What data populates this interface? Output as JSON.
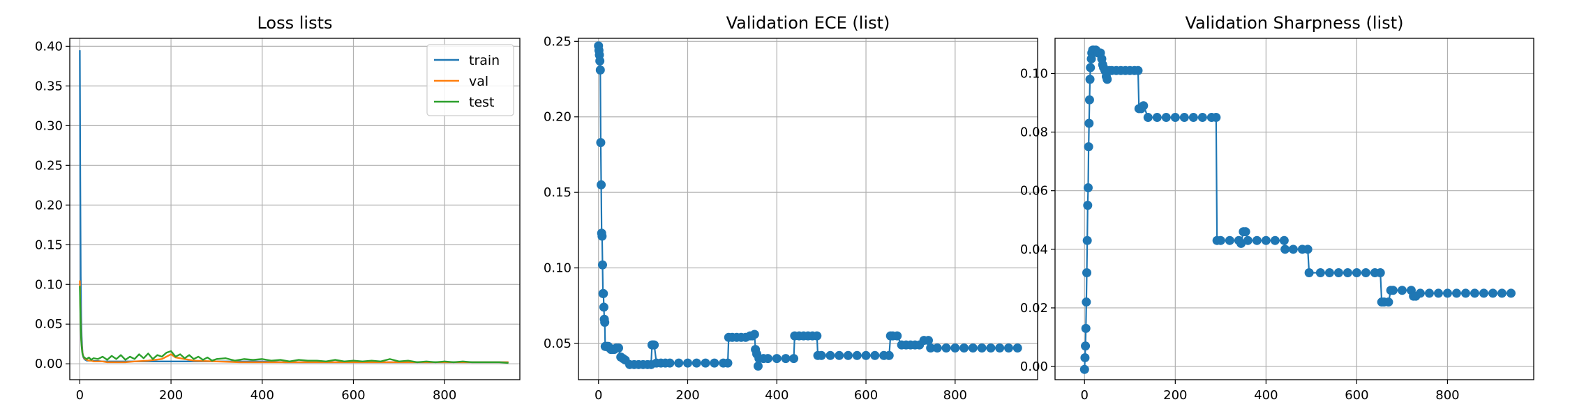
{
  "chart_data": [
    {
      "type": "line",
      "title": "Loss lists",
      "xlabel": "",
      "ylabel": "",
      "xlim": [
        -22,
        965
      ],
      "ylim": [
        -0.02,
        0.41
      ],
      "xticks": [
        0,
        200,
        400,
        600,
        800
      ],
      "yticks": [
        0.0,
        0.05,
        0.1,
        0.15,
        0.2,
        0.25,
        0.3,
        0.35,
        0.4
      ],
      "grid": true,
      "legend": "top-right",
      "series": [
        {
          "name": "train",
          "color": "#1f77b4",
          "x": [
            0,
            1,
            2,
            3,
            4,
            5,
            6,
            8,
            10,
            12,
            15,
            20,
            25,
            30,
            40,
            50,
            60,
            80,
            100,
            120,
            150,
            200,
            250,
            300,
            350,
            400,
            450,
            500,
            550,
            600,
            650,
            700,
            750,
            800,
            850,
            900,
            940
          ],
          "y": [
            0.395,
            0.23,
            0.11,
            0.06,
            0.035,
            0.022,
            0.014,
            0.008,
            0.006,
            0.005,
            0.004,
            0.004,
            0.004,
            0.0035,
            0.0035,
            0.003,
            0.003,
            0.003,
            0.003,
            0.003,
            0.003,
            0.003,
            0.003,
            0.003,
            0.003,
            0.003,
            0.002,
            0.002,
            0.002,
            0.002,
            0.002,
            0.002,
            0.002,
            0.002,
            0.002,
            0.002,
            0.002
          ]
        },
        {
          "name": "val",
          "color": "#ff7f0e",
          "x": [
            0,
            1,
            2,
            3,
            4,
            5,
            6,
            8,
            10,
            12,
            15,
            20,
            25,
            30,
            40,
            50,
            60,
            80,
            100,
            120,
            150,
            180,
            200,
            210,
            250,
            300,
            350,
            400,
            450,
            500,
            550,
            600,
            650,
            700,
            750,
            800,
            850,
            900,
            940
          ],
          "y": [
            0.105,
            0.075,
            0.05,
            0.035,
            0.025,
            0.018,
            0.013,
            0.009,
            0.007,
            0.006,
            0.005,
            0.004,
            0.004,
            0.003,
            0.003,
            0.003,
            0.002,
            0.002,
            0.002,
            0.003,
            0.004,
            0.006,
            0.012,
            0.008,
            0.004,
            0.003,
            0.002,
            0.002,
            0.002,
            0.002,
            0.002,
            0.002,
            0.002,
            0.002,
            0.002,
            0.002,
            0.002,
            0.002,
            0.002
          ]
        },
        {
          "name": "test",
          "color": "#2ca02c",
          "x": [
            0,
            1,
            2,
            3,
            4,
            5,
            6,
            8,
            10,
            12,
            15,
            20,
            25,
            30,
            40,
            50,
            60,
            70,
            80,
            90,
            100,
            110,
            120,
            130,
            140,
            150,
            160,
            170,
            180,
            190,
            200,
            210,
            220,
            230,
            240,
            250,
            260,
            270,
            280,
            290,
            300,
            320,
            340,
            360,
            380,
            400,
            420,
            440,
            460,
            480,
            500,
            520,
            540,
            560,
            580,
            600,
            620,
            640,
            660,
            680,
            700,
            720,
            740,
            760,
            780,
            800,
            820,
            840,
            860,
            880,
            900,
            920,
            940
          ],
          "y": [
            0.098,
            0.07,
            0.045,
            0.03,
            0.022,
            0.016,
            0.012,
            0.009,
            0.008,
            0.007,
            0.006,
            0.008,
            0.005,
            0.007,
            0.006,
            0.009,
            0.005,
            0.01,
            0.006,
            0.011,
            0.005,
            0.009,
            0.006,
            0.012,
            0.007,
            0.013,
            0.006,
            0.011,
            0.009,
            0.014,
            0.016,
            0.009,
            0.012,
            0.007,
            0.011,
            0.006,
            0.009,
            0.005,
            0.008,
            0.004,
            0.006,
            0.007,
            0.004,
            0.006,
            0.005,
            0.006,
            0.004,
            0.005,
            0.003,
            0.005,
            0.004,
            0.004,
            0.003,
            0.005,
            0.003,
            0.004,
            0.003,
            0.004,
            0.003,
            0.006,
            0.003,
            0.004,
            0.002,
            0.003,
            0.002,
            0.003,
            0.002,
            0.003,
            0.002,
            0.002,
            0.002,
            0.002,
            0.001
          ]
        }
      ]
    },
    {
      "type": "line",
      "title": "Validation ECE (list)",
      "xlabel": "",
      "ylabel": "",
      "xlim": [
        -45,
        985
      ],
      "ylim": [
        0.026,
        0.252
      ],
      "xticks": [
        0,
        200,
        400,
        600,
        800
      ],
      "yticks": [
        0.05,
        0.1,
        0.15,
        0.2,
        0.25
      ],
      "grid": true,
      "markers": true,
      "series": [
        {
          "name": "",
          "color": "#1f77b4",
          "x": [
            0,
            1,
            2,
            3,
            4,
            5,
            6,
            7,
            8,
            9,
            10,
            11,
            12,
            13,
            14,
            15,
            16,
            18,
            20,
            22,
            25,
            28,
            30,
            35,
            40,
            45,
            50,
            55,
            60,
            70,
            80,
            90,
            100,
            110,
            118,
            120,
            122,
            125,
            130,
            140,
            150,
            160,
            180,
            200,
            220,
            240,
            260,
            280,
            290,
            292,
            300,
            310,
            320,
            330,
            340,
            345,
            350,
            352,
            355,
            358,
            360,
            370,
            380,
            400,
            420,
            438,
            440,
            450,
            460,
            470,
            480,
            490,
            492,
            500,
            520,
            540,
            560,
            580,
            600,
            620,
            640,
            652,
            655,
            660,
            670,
            680,
            690,
            700,
            710,
            720,
            730,
            740,
            745,
            760,
            780,
            800,
            820,
            840,
            860,
            880,
            900,
            920,
            940
          ],
          "y": [
            0.247,
            0.244,
            0.241,
            0.237,
            0.231,
            0.183,
            0.155,
            0.123,
            0.121,
            0.102,
            0.083,
            0.083,
            0.074,
            0.066,
            0.064,
            0.048,
            0.048,
            0.048,
            0.048,
            0.048,
            0.047,
            0.046,
            0.046,
            0.046,
            0.047,
            0.047,
            0.041,
            0.04,
            0.039,
            0.036,
            0.036,
            0.036,
            0.036,
            0.036,
            0.036,
            0.049,
            0.049,
            0.049,
            0.037,
            0.037,
            0.037,
            0.037,
            0.037,
            0.037,
            0.037,
            0.037,
            0.037,
            0.037,
            0.037,
            0.054,
            0.054,
            0.054,
            0.054,
            0.054,
            0.055,
            0.055,
            0.056,
            0.046,
            0.043,
            0.035,
            0.04,
            0.04,
            0.04,
            0.04,
            0.04,
            0.04,
            0.055,
            0.055,
            0.055,
            0.055,
            0.055,
            0.055,
            0.042,
            0.042,
            0.042,
            0.042,
            0.042,
            0.042,
            0.042,
            0.042,
            0.042,
            0.042,
            0.055,
            0.055,
            0.055,
            0.049,
            0.049,
            0.049,
            0.049,
            0.049,
            0.052,
            0.052,
            0.047,
            0.047,
            0.047,
            0.047,
            0.047,
            0.047,
            0.047,
            0.047,
            0.047,
            0.047,
            0.047
          ]
        }
      ]
    },
    {
      "type": "line",
      "title": "Validation Sharpness (list)",
      "xlabel": "",
      "ylabel": "",
      "xlim": [
        -65,
        990
      ],
      "ylim": [
        -0.0045,
        0.112
      ],
      "xticks": [
        0,
        200,
        400,
        600,
        800
      ],
      "yticks": [
        0.0,
        0.02,
        0.04,
        0.06,
        0.08,
        0.1
      ],
      "grid": true,
      "markers": true,
      "series": [
        {
          "name": "",
          "color": "#1f77b4",
          "x": [
            0,
            1,
            2,
            3,
            4,
            5,
            6,
            7,
            8,
            9,
            10,
            11,
            12,
            13,
            15,
            16,
            18,
            20,
            25,
            30,
            35,
            38,
            40,
            42,
            45,
            48,
            50,
            55,
            60,
            70,
            80,
            90,
            100,
            110,
            118,
            120,
            125,
            130,
            140,
            160,
            180,
            200,
            220,
            240,
            260,
            280,
            290,
            292,
            300,
            320,
            340,
            345,
            350,
            355,
            360,
            380,
            400,
            420,
            440,
            442,
            460,
            480,
            492,
            495,
            520,
            540,
            560,
            580,
            600,
            620,
            640,
            652,
            655,
            660,
            670,
            675,
            680,
            700,
            720,
            725,
            730,
            740,
            760,
            780,
            800,
            820,
            840,
            860,
            880,
            900,
            920,
            940
          ],
          "y": [
            -0.001,
            0.003,
            0.007,
            0.013,
            0.022,
            0.032,
            0.043,
            0.055,
            0.061,
            0.075,
            0.083,
            0.091,
            0.098,
            0.102,
            0.105,
            0.107,
            0.108,
            0.108,
            0.108,
            0.107,
            0.107,
            0.105,
            0.103,
            0.102,
            0.101,
            0.099,
            0.098,
            0.101,
            0.101,
            0.101,
            0.101,
            0.101,
            0.101,
            0.101,
            0.101,
            0.088,
            0.088,
            0.089,
            0.085,
            0.085,
            0.085,
            0.085,
            0.085,
            0.085,
            0.085,
            0.085,
            0.085,
            0.043,
            0.043,
            0.043,
            0.043,
            0.042,
            0.046,
            0.046,
            0.043,
            0.043,
            0.043,
            0.043,
            0.043,
            0.04,
            0.04,
            0.04,
            0.04,
            0.032,
            0.032,
            0.032,
            0.032,
            0.032,
            0.032,
            0.032,
            0.032,
            0.032,
            0.022,
            0.022,
            0.022,
            0.026,
            0.026,
            0.026,
            0.026,
            0.024,
            0.024,
            0.025,
            0.025,
            0.025,
            0.025,
            0.025,
            0.025,
            0.025,
            0.025,
            0.025,
            0.025,
            0.025
          ]
        }
      ]
    }
  ]
}
